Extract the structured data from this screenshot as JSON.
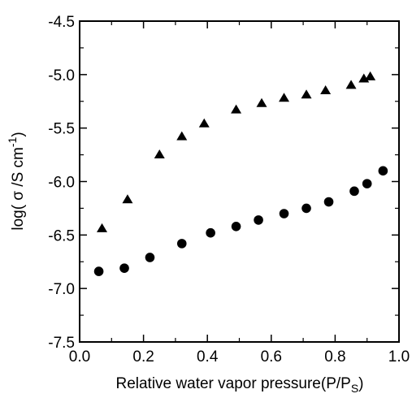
{
  "chart_data": {
    "type": "scatter",
    "title": "",
    "xlabel_main": "Relative water vapor pressure(P/P",
    "xlabel_sub": "S",
    "xlabel_end": ")",
    "ylabel_main": "log( σ /S cm",
    "ylabel_sup": "-1",
    "ylabel_end": ")",
    "xlim": [
      0.0,
      1.0
    ],
    "ylim": [
      -7.5,
      -4.5
    ],
    "xticks": [
      0.0,
      0.2,
      0.4,
      0.6,
      0.8,
      1.0
    ],
    "xtick_labels": [
      "0.0",
      "0.2",
      "0.4",
      "0.6",
      "0.8",
      "1.0"
    ],
    "yticks": [
      -7.5,
      -7.0,
      -6.5,
      -6.0,
      -5.5,
      -5.0,
      -4.5
    ],
    "ytick_labels": [
      "-7.5",
      "-7.0",
      "-6.5",
      "-6.0",
      "-5.5",
      "-5.0",
      "-4.5"
    ],
    "grid": false,
    "series": [
      {
        "marker": "triangle",
        "color": "#000000",
        "x": [
          0.07,
          0.15,
          0.25,
          0.32,
          0.39,
          0.49,
          0.57,
          0.64,
          0.71,
          0.77,
          0.85,
          0.89,
          0.91
        ],
        "y": [
          -6.44,
          -6.17,
          -5.75,
          -5.58,
          -5.46,
          -5.33,
          -5.27,
          -5.22,
          -5.19,
          -5.15,
          -5.1,
          -5.04,
          -5.02
        ]
      },
      {
        "marker": "circle",
        "color": "#000000",
        "x": [
          0.06,
          0.14,
          0.22,
          0.32,
          0.41,
          0.49,
          0.56,
          0.64,
          0.71,
          0.78,
          0.86,
          0.9,
          0.95
        ],
        "y": [
          -6.84,
          -6.81,
          -6.71,
          -6.58,
          -6.48,
          -6.42,
          -6.36,
          -6.3,
          -6.25,
          -6.19,
          -6.09,
          -6.02,
          -5.9
        ]
      }
    ]
  }
}
